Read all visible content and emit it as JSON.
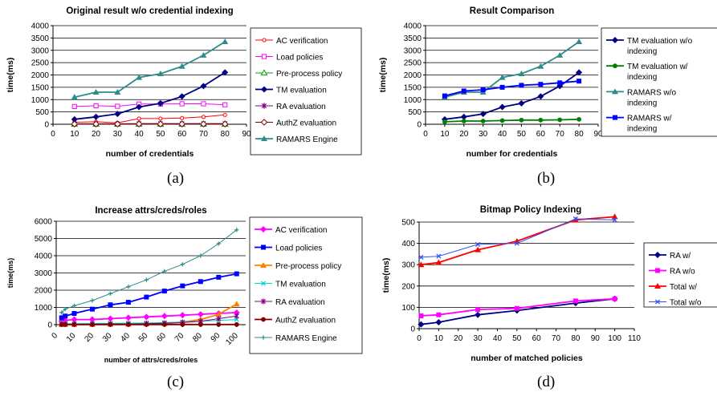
{
  "captions": [
    "(a)",
    "(b)",
    "(c)",
    "(d)"
  ],
  "chart_data": [
    {
      "type": "line",
      "title": "Original result w/o credential indexing",
      "xlabel": "number of credentials",
      "ylabel": "time(ms)",
      "xlim": [
        0,
        90
      ],
      "ylim": [
        0,
        4000
      ],
      "x_ticks": [
        0,
        10,
        20,
        30,
        40,
        50,
        60,
        70,
        80,
        90
      ],
      "y_ticks": [
        0,
        500,
        1000,
        1500,
        2000,
        2500,
        3000,
        3500,
        4000
      ],
      "grid": "horizontal",
      "legend": "right",
      "x": [
        10,
        20,
        30,
        40,
        50,
        60,
        70,
        80
      ],
      "series": [
        {
          "name": "AC verification",
          "color": "#ff0000",
          "marker": "circle-open",
          "values": [
            80,
            100,
            60,
            230,
            230,
            250,
            300,
            380
          ]
        },
        {
          "name": "Load policies",
          "color": "#ff00ff",
          "marker": "square-open",
          "values": [
            720,
            750,
            730,
            820,
            820,
            830,
            830,
            790
          ]
        },
        {
          "name": "Pre-process policy",
          "color": "#00a000",
          "marker": "triangle-open",
          "values": [
            5,
            5,
            5,
            5,
            5,
            5,
            5,
            5
          ]
        },
        {
          "name": "TM evaluation",
          "color": "#000080",
          "marker": "diamond",
          "values": [
            200,
            300,
            420,
            700,
            850,
            1130,
            1550,
            2100
          ]
        },
        {
          "name": "RA evaluation",
          "color": "#800080",
          "marker": "star",
          "values": [
            20,
            20,
            20,
            30,
            30,
            30,
            30,
            30
          ]
        },
        {
          "name": "AuthZ evaluation",
          "color": "#800000",
          "marker": "diamond-open",
          "values": [
            10,
            10,
            10,
            10,
            10,
            10,
            10,
            10
          ]
        },
        {
          "name": "RAMARS Engine",
          "color": "#2e8b8b",
          "marker": "triangle",
          "values": [
            1100,
            1300,
            1300,
            1900,
            2050,
            2350,
            2800,
            3350
          ]
        }
      ]
    },
    {
      "type": "line",
      "title": "Result Comparison",
      "xlabel": "number for credentials",
      "ylabel": "time(ms)",
      "xlim": [
        0,
        90
      ],
      "ylim": [
        0,
        4000
      ],
      "x_ticks": [
        0,
        10,
        20,
        30,
        40,
        50,
        60,
        70,
        80,
        90
      ],
      "y_ticks": [
        0,
        500,
        1000,
        1500,
        2000,
        2500,
        3000,
        3500,
        4000
      ],
      "grid": "horizontal",
      "legend": "right",
      "x": [
        10,
        20,
        30,
        40,
        50,
        60,
        70,
        80
      ],
      "series": [
        {
          "name": "TM evaluation w/o indexing",
          "color": "#000080",
          "marker": "diamond",
          "values": [
            200,
            300,
            420,
            700,
            850,
            1130,
            1550,
            2100
          ]
        },
        {
          "name": "TM evaluation w/ indexing",
          "color": "#008000",
          "marker": "circle",
          "values": [
            100,
            130,
            130,
            150,
            170,
            170,
            180,
            200
          ]
        },
        {
          "name": "RAMARS w/o indexing",
          "color": "#2e8b8b",
          "marker": "triangle",
          "values": [
            1100,
            1300,
            1300,
            1900,
            2050,
            2350,
            2800,
            3350
          ]
        },
        {
          "name": "RAMARS w/ indexing",
          "color": "#0000ff",
          "marker": "square",
          "values": [
            1150,
            1350,
            1400,
            1500,
            1580,
            1620,
            1680,
            1750
          ]
        }
      ]
    },
    {
      "type": "line",
      "title": "Increase attrs/creds/roles",
      "xlabel": "number of attrs/creds/roles",
      "ylabel": "time(ms)",
      "xlim": [
        0,
        105
      ],
      "ylim": [
        0,
        6000
      ],
      "x_ticks": [
        0,
        10,
        20,
        30,
        40,
        50,
        60,
        70,
        80,
        90,
        100
      ],
      "y_ticks": [
        0,
        1000,
        2000,
        3000,
        4000,
        5000,
        6000
      ],
      "grid": "horizontal",
      "legend": "right",
      "x": [
        3,
        5,
        10,
        20,
        30,
        40,
        50,
        60,
        70,
        80,
        90,
        100
      ],
      "series": [
        {
          "name": "AC verification",
          "color": "#ff00ff",
          "marker": "diamond",
          "values": [
            200,
            250,
            300,
            300,
            350,
            400,
            450,
            500,
            550,
            600,
            650,
            700
          ]
        },
        {
          "name": "Load policies",
          "color": "#0000ff",
          "marker": "square",
          "values": [
            400,
            500,
            650,
            900,
            1150,
            1300,
            1600,
            1950,
            2250,
            2500,
            2750,
            2950
          ]
        },
        {
          "name": "Pre-process policy",
          "color": "#ff8000",
          "marker": "triangle",
          "values": [
            10,
            10,
            10,
            10,
            20,
            30,
            40,
            60,
            150,
            300,
            600,
            1200
          ]
        },
        {
          "name": "TM evaluation",
          "color": "#00d0d0",
          "marker": "x",
          "values": [
            50,
            60,
            60,
            70,
            80,
            90,
            100,
            120,
            150,
            200,
            250,
            300
          ]
        },
        {
          "name": "RA evaluation",
          "color": "#800080",
          "marker": "star",
          "values": [
            20,
            20,
            20,
            30,
            40,
            40,
            60,
            80,
            120,
            200,
            350,
            500
          ]
        },
        {
          "name": "AuthZ evaluation",
          "color": "#800000",
          "marker": "circle",
          "values": [
            10,
            10,
            10,
            10,
            10,
            10,
            10,
            10,
            10,
            10,
            10,
            10
          ]
        },
        {
          "name": "RAMARS Engine",
          "color": "#2e8b8b",
          "marker": "plus",
          "values": [
            700,
            900,
            1100,
            1400,
            1800,
            2200,
            2600,
            3100,
            3500,
            4000,
            4700,
            5500
          ]
        }
      ]
    },
    {
      "type": "line",
      "title": "Bitmap Policy Indexing",
      "xlabel": "number of matched policies",
      "ylabel": "time(ms)",
      "xlim": [
        0,
        110
      ],
      "ylim": [
        0,
        500
      ],
      "x_ticks": [
        0,
        10,
        20,
        30,
        40,
        50,
        60,
        70,
        80,
        90,
        100,
        110
      ],
      "y_ticks": [
        0,
        100,
        200,
        300,
        400,
        500
      ],
      "grid": "horizontal",
      "legend": "right",
      "x": [
        1,
        10,
        30,
        50,
        80,
        100
      ],
      "series": [
        {
          "name": "RA w/",
          "color": "#000080",
          "marker": "diamond",
          "values": [
            20,
            30,
            65,
            85,
            120,
            140
          ]
        },
        {
          "name": "RA w/o",
          "color": "#ff00ff",
          "marker": "square",
          "values": [
            60,
            65,
            90,
            95,
            130,
            140
          ]
        },
        {
          "name": "Total w/",
          "color": "#ff0000",
          "marker": "triangle",
          "values": [
            300,
            310,
            370,
            410,
            510,
            525
          ]
        },
        {
          "name": "Total w/o",
          "color": "#3050ff",
          "marker": "x",
          "values": [
            335,
            340,
            395,
            400,
            515,
            510
          ]
        }
      ]
    }
  ]
}
